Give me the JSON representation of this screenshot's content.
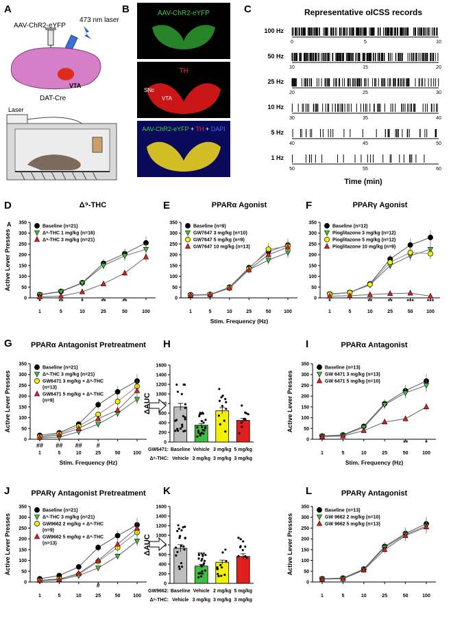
{
  "colors": {
    "black": "#000000",
    "green": "#3fbf3f",
    "yellow": "#f2f200",
    "red": "#e02020",
    "gray": "#bdbdbd",
    "micro_bg": "#000000"
  },
  "panelA": {
    "letter": "A",
    "virus": "AAV-ChR2-eYFP",
    "laser": "473 nm laser",
    "region": "VTA",
    "mouse": "DAT-Cre",
    "device": "Laser"
  },
  "panelB": {
    "letter": "B",
    "img1": "AAV-ChR2-eYFP",
    "img2": "TH",
    "img2_snc": "SNc",
    "img2_vta": "VTA",
    "img3_parts": [
      "AAV-ChR2-eYFP",
      " + ",
      "TH",
      " + ",
      "DAPI"
    ]
  },
  "panelC": {
    "letter": "C",
    "title": "Representative oICSS records",
    "xlabel": "Time (min)",
    "rows": [
      {
        "label": "100 Hz",
        "ticks": [
          "0",
          "5",
          "10"
        ]
      },
      {
        "label": "50 Hz",
        "ticks": [
          "10",
          "15",
          "20"
        ]
      },
      {
        "label": "25 Hz",
        "ticks": [
          "20",
          "25",
          "30"
        ]
      },
      {
        "label": "10 Hz",
        "ticks": [
          "30",
          "35",
          "40"
        ]
      },
      {
        "label": "5 Hz",
        "ticks": [
          "40",
          "45",
          "50"
        ]
      },
      {
        "label": "1 Hz",
        "ticks": [
          "50",
          "55",
          "60"
        ]
      }
    ]
  },
  "chart_data": [
    {
      "id": "D",
      "type": "line",
      "title": "Δ⁹-THC",
      "x": [
        "1",
        "5",
        "10",
        "25",
        "50",
        "100"
      ],
      "ylabel": "Active Lever Presses",
      "xlabel": "",
      "ylim": [
        0,
        350
      ],
      "yticks": [
        "0",
        "50",
        "100",
        "150",
        "200",
        "250",
        "300",
        "350"
      ],
      "extra_letter": "A",
      "series": [
        {
          "name": "Baseline (n=21)",
          "color": "#000000",
          "marker": "circle",
          "values": [
            15,
            30,
            70,
            160,
            205,
            255
          ]
        },
        {
          "name": "Δ⁹-THC 1 mg/kg (n=16)",
          "color": "#3fbf3f",
          "marker": "tri-down",
          "values": [
            14,
            28,
            68,
            150,
            195,
            225
          ]
        },
        {
          "name": "Δ⁹-THC 3 mg/kg (n=21)",
          "color": "#e02020",
          "marker": "tri-up",
          "values": [
            5,
            8,
            28,
            65,
            115,
            190
          ]
        }
      ],
      "annotations": [
        {
          "x": 0,
          "text": "*"
        },
        {
          "x": 1,
          "text": "**"
        },
        {
          "x": 2,
          "text": "*"
        },
        {
          "x": 3,
          "text": "**"
        },
        {
          "x": 4,
          "text": "**"
        }
      ]
    },
    {
      "id": "E",
      "type": "line",
      "title": "PPARα Agonist",
      "x": [
        "1",
        "5",
        "10",
        "25",
        "50",
        "100"
      ],
      "ylabel": "",
      "xlabel": "Stim. Frequency (Hz)",
      "ylim": [
        0,
        350
      ],
      "yticks": [
        "0",
        "50",
        "100",
        "150",
        "200",
        "250",
        "300",
        "350"
      ],
      "series": [
        {
          "name": "Baseline (n=9)",
          "color": "#000000",
          "marker": "circle",
          "values": [
            14,
            15,
            50,
            140,
            215,
            245
          ]
        },
        {
          "name": "GW7647 3 mg/kg (n=10)",
          "color": "#3fbf3f",
          "marker": "tri-down",
          "values": [
            12,
            14,
            45,
            130,
            175,
            210
          ]
        },
        {
          "name": "GW7647 5 mg/kg (n=9)",
          "color": "#f2f200",
          "marker": "circle",
          "values": [
            13,
            16,
            48,
            135,
            225,
            240
          ]
        },
        {
          "name": "GW7647 10 mg/kg (n=13)",
          "color": "#e02020",
          "marker": "tri-up",
          "values": [
            12,
            15,
            46,
            130,
            200,
            235
          ]
        }
      ],
      "annotations": []
    },
    {
      "id": "F",
      "type": "line",
      "title": "PPARγ Agonist",
      "x": [
        "1",
        "5",
        "10",
        "25",
        "50",
        "100"
      ],
      "ylabel": "",
      "xlabel": "",
      "ylim": [
        0,
        350
      ],
      "yticks": [
        "0",
        "50",
        "100",
        "150",
        "200",
        "250",
        "300",
        "350"
      ],
      "series": [
        {
          "name": "Baseline (n=12)",
          "color": "#000000",
          "marker": "circle",
          "values": [
            18,
            25,
            65,
            180,
            245,
            280
          ]
        },
        {
          "name": "Pioglitazone 3 mg/kg (n=12)",
          "color": "#3fbf3f",
          "marker": "tri-down",
          "values": [
            16,
            24,
            60,
            150,
            195,
            225
          ]
        },
        {
          "name": "Pioglitazone 5 mg/kg (n=12)",
          "color": "#f2f200",
          "marker": "circle",
          "values": [
            17,
            24,
            62,
            165,
            210,
            205
          ]
        },
        {
          "name": "Pioglitazone 10 mg/kg (n=9)",
          "color": "#e02020",
          "marker": "tri-up",
          "values": [
            8,
            10,
            15,
            20,
            22,
            8
          ]
        }
      ],
      "annotations": [
        {
          "x": 0,
          "text": "*"
        },
        {
          "x": 2,
          "text": "**"
        },
        {
          "x": 3,
          "text": "**"
        },
        {
          "x": 4,
          "text": "***"
        },
        {
          "x": 5,
          "text": "***"
        }
      ]
    },
    {
      "id": "G",
      "type": "line",
      "title": "PPARα Antagonist Pretreatment",
      "x": [
        "1",
        "5",
        "10",
        "25",
        "50",
        "100"
      ],
      "ylabel": "Active Lever Presses",
      "xlabel": "Stim. Frequency (Hz)",
      "ylim": [
        0,
        350
      ],
      "yticks": [
        "0",
        "50",
        "100",
        "150",
        "200",
        "250",
        "300",
        "350"
      ],
      "series": [
        {
          "name": "Baseline (n=21)",
          "color": "#000000",
          "marker": "circle",
          "values": [
            18,
            30,
            70,
            160,
            220,
            270
          ]
        },
        {
          "name": "Δ⁹-THC 3 mg/kg (n=21)",
          "color": "#3fbf3f",
          "marker": "tri-down",
          "values": [
            5,
            10,
            35,
            70,
            120,
            185
          ]
        },
        {
          "name": "GW6471 3 mg/kg + Δ⁹-THC (n=13)",
          "color": "#f2f200",
          "marker": "circle",
          "values": [
            12,
            25,
            60,
            115,
            175,
            245
          ]
        },
        {
          "name": "GW6471 5 mg/kg + Δ⁹-THC (n=9)",
          "color": "#e02020",
          "marker": "tri-up",
          "values": [
            8,
            20,
            50,
            95,
            135,
            225
          ]
        }
      ],
      "annotations": [
        {
          "x": 0,
          "text": "##"
        },
        {
          "x": 1,
          "text": "##"
        },
        {
          "x": 2,
          "text": "##"
        },
        {
          "x": 3,
          "text": "#"
        }
      ]
    },
    {
      "id": "H",
      "type": "bar",
      "ylabel": "ΔAUC",
      "ylim": [
        0,
        1600
      ],
      "yticks": [
        "0",
        "200",
        "400",
        "600",
        "800",
        "1000",
        "1200",
        "1400",
        "1600"
      ],
      "row1_label": "GW6471:",
      "row2_label": "Δ⁹-THC:",
      "categories_row1": [
        "Baseline",
        "Vehicle",
        "3 mg/kg",
        "5 mg/kg"
      ],
      "categories_row2": [
        "Vehicle",
        "3 mg/kg",
        "3 mg/kg",
        "3 mg/kg"
      ],
      "values": [
        730,
        350,
        650,
        450
      ],
      "colors": [
        "#bdbdbd",
        "#3fbf3f",
        "#f2f200",
        "#e02020"
      ],
      "annotations": [
        {
          "x": 1,
          "text": "**"
        }
      ]
    },
    {
      "id": "I",
      "type": "line",
      "title": "PPARα Antagonist",
      "x": [
        "1",
        "5",
        "10",
        "25",
        "50",
        "100"
      ],
      "ylabel": "Active Lever Presses",
      "xlabel": "Stim. Frequency (Hz)",
      "ylim": [
        0,
        350
      ],
      "yticks": [
        "0",
        "50",
        "100",
        "150",
        "200",
        "250",
        "300",
        "350"
      ],
      "series": [
        {
          "name": "Baseline (n=13)",
          "color": "#000000",
          "marker": "circle",
          "values": [
            15,
            20,
            60,
            165,
            225,
            270
          ]
        },
        {
          "name": "GW 6471 3 mg/kg (n=13)",
          "color": "#3fbf3f",
          "marker": "tri-down",
          "values": [
            14,
            18,
            55,
            160,
            215,
            250
          ]
        },
        {
          "name": "GW 6471 5 mg/kg (n=10)",
          "color": "#e02020",
          "marker": "tri-up",
          "values": [
            12,
            15,
            40,
            80,
            95,
            150
          ]
        }
      ],
      "annotations": [
        {
          "x": 4,
          "text": "**"
        },
        {
          "x": 5,
          "text": "*"
        }
      ]
    },
    {
      "id": "J",
      "type": "line",
      "title": "PPARγ Antagonist Pretreatment",
      "x": [
        "1",
        "5",
        "10",
        "25",
        "50",
        "100"
      ],
      "ylabel": "Active Lever Presses",
      "xlabel": "",
      "ylim": [
        0,
        350
      ],
      "yticks": [
        "0",
        "50",
        "100",
        "150",
        "200",
        "250",
        "300",
        "350"
      ],
      "series": [
        {
          "name": "Baseline (n=21)",
          "color": "#000000",
          "marker": "circle",
          "values": [
            15,
            30,
            70,
            160,
            215,
            265
          ]
        },
        {
          "name": "Δ⁹-THC 3 mg/kg (n=21)",
          "color": "#3fbf3f",
          "marker": "tri-down",
          "values": [
            5,
            10,
            30,
            65,
            120,
            190
          ]
        },
        {
          "name": "GW9662 2 mg/kg + Δ⁹-THC (n=9)",
          "color": "#f2f200",
          "marker": "circle",
          "values": [
            8,
            15,
            35,
            95,
            160,
            230
          ]
        },
        {
          "name": "GW9662 5 mg/kg + Δ⁹-THC (n=13)",
          "color": "#e02020",
          "marker": "tri-up",
          "values": [
            7,
            12,
            40,
            100,
            175,
            250
          ]
        }
      ],
      "annotations": [
        {
          "x": 3,
          "text": "#"
        }
      ]
    },
    {
      "id": "K",
      "type": "bar",
      "ylabel": "ΔAUC",
      "ylim": [
        0,
        1600
      ],
      "yticks": [
        "0",
        "200",
        "400",
        "600",
        "800",
        "1000",
        "1200",
        "1400",
        "1600"
      ],
      "row1_label": "GW9662:",
      "row2_label": "Δ⁹-THC:",
      "categories_row1": [
        "Baseline",
        "Vehicle",
        "2 mg/kg",
        "5 mg/kg"
      ],
      "categories_row2": [
        "Vehicle",
        "3 mg/kg",
        "3 mg/kg",
        "3 mg/kg"
      ],
      "values": [
        730,
        360,
        440,
        560
      ],
      "colors": [
        "#bdbdbd",
        "#3fbf3f",
        "#f2f200",
        "#e02020"
      ],
      "annotations": [
        {
          "x": 1,
          "text": "***"
        }
      ]
    },
    {
      "id": "L",
      "type": "line",
      "title": "PPARγ Antagonist",
      "x": [
        "1",
        "5",
        "10",
        "25",
        "50",
        "100"
      ],
      "ylabel": "Active Lever Presses",
      "xlabel": "",
      "ylim": [
        0,
        350
      ],
      "yticks": [
        "0",
        "50",
        "100",
        "150",
        "200",
        "250",
        "300",
        "350"
      ],
      "series": [
        {
          "name": "Baseline (n=13)",
          "color": "#000000",
          "marker": "circle",
          "values": [
            15,
            18,
            60,
            165,
            225,
            270
          ]
        },
        {
          "name": "GW 9662 2 mg/kg (n=10)",
          "color": "#3fbf3f",
          "marker": "tri-down",
          "values": [
            14,
            16,
            58,
            160,
            220,
            260
          ]
        },
        {
          "name": "GW 9662 5 mg/kg (n=13)",
          "color": "#e02020",
          "marker": "tri-up",
          "values": [
            13,
            15,
            55,
            150,
            215,
            255
          ]
        }
      ],
      "annotations": []
    }
  ]
}
